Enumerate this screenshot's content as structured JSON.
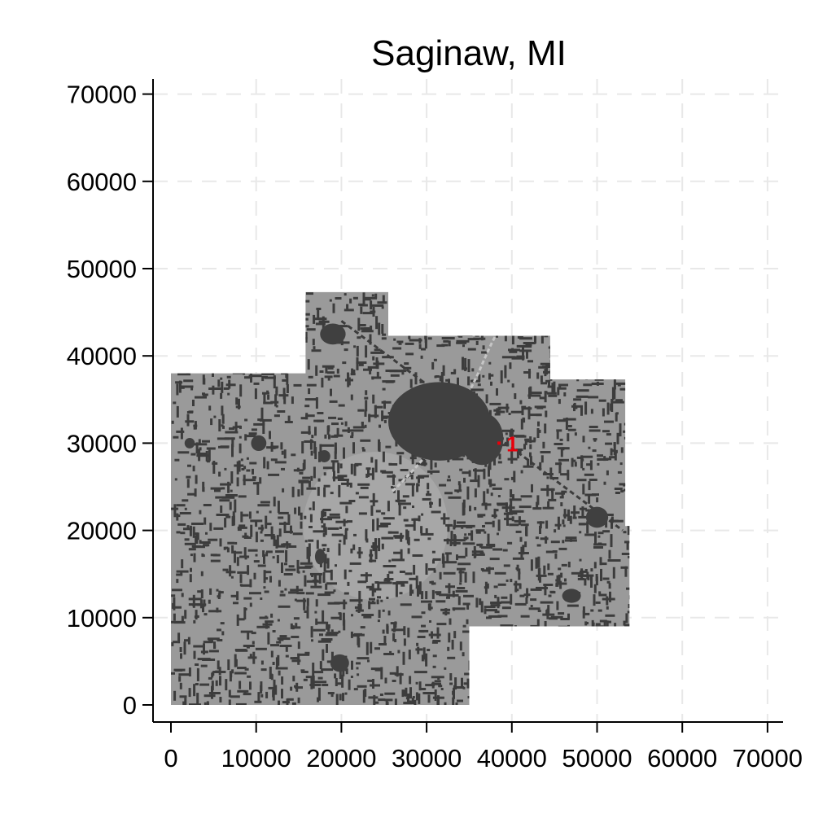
{
  "chart_data": {
    "type": "map",
    "title": "Saginaw, MI",
    "xlim": [
      0,
      72000
    ],
    "ylim": [
      0,
      72000
    ],
    "x_ticks": [
      0,
      10000,
      20000,
      30000,
      40000,
      50000,
      60000,
      70000
    ],
    "y_ticks": [
      0,
      10000,
      20000,
      30000,
      40000,
      50000,
      60000,
      70000
    ],
    "grid": true,
    "colors": {
      "region": "#9a9a9a",
      "region_light": "#a7a7a7",
      "urban": "#404040",
      "roads": "#3c3c3c",
      "river": "#c6c6c6",
      "marker": "#e8000b"
    },
    "region_outline": [
      [
        0,
        0
      ],
      [
        35000,
        0
      ],
      [
        35000,
        9000
      ],
      [
        53800,
        9000
      ],
      [
        53800,
        20500
      ],
      [
        53300,
        20500
      ],
      [
        53300,
        37300
      ],
      [
        44500,
        37300
      ],
      [
        44500,
        42300
      ],
      [
        25500,
        42300
      ],
      [
        25500,
        47300
      ],
      [
        15800,
        47300
      ],
      [
        15800,
        38000
      ],
      [
        0,
        38000
      ]
    ],
    "urban_clusters": [
      {
        "x": 31500,
        "y": 32500,
        "rx": 6000,
        "ry": 4500
      },
      {
        "x": 36500,
        "y": 30500,
        "rx": 2500,
        "ry": 3000
      },
      {
        "x": 19000,
        "y": 42500,
        "rx": 1500,
        "ry": 1200
      },
      {
        "x": 50000,
        "y": 21500,
        "rx": 1300,
        "ry": 1200
      },
      {
        "x": 10300,
        "y": 30000,
        "rx": 900,
        "ry": 900
      },
      {
        "x": 19800,
        "y": 4800,
        "rx": 1100,
        "ry": 1000
      },
      {
        "x": 47000,
        "y": 12500,
        "rx": 1100,
        "ry": 800
      },
      {
        "x": 18000,
        "y": 28500,
        "rx": 700,
        "ry": 700
      },
      {
        "x": 2200,
        "y": 30000,
        "rx": 600,
        "ry": 600
      },
      {
        "x": 17500,
        "y": 17000,
        "rx": 600,
        "ry": 900
      }
    ],
    "light_area": {
      "x": 24000,
      "y": 20500,
      "rx": 8500,
      "ry": 8500
    },
    "markers": [
      {
        "label": "1",
        "x": 38500,
        "y": 30000
      }
    ]
  }
}
